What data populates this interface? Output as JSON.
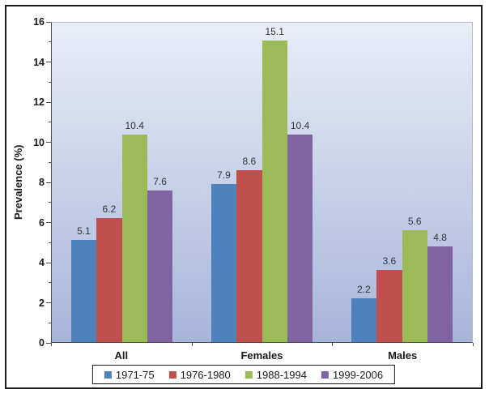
{
  "chart_data": {
    "type": "bar",
    "title": "",
    "categories": [
      "All",
      "Females",
      "Males"
    ],
    "series": [
      {
        "name": "1971-75",
        "color": "#4F81BD",
        "values": [
          5.1,
          7.9,
          2.2
        ]
      },
      {
        "name": "1976-1980",
        "color": "#C0504D",
        "values": [
          6.2,
          8.6,
          3.6
        ]
      },
      {
        "name": "1988-1994",
        "color": "#9BBB59",
        "values": [
          10.4,
          15.1,
          5.6
        ]
      },
      {
        "name": "1999-2006",
        "color": "#8064A2",
        "values": [
          7.6,
          10.4,
          4.8
        ]
      }
    ],
    "xlabel": "",
    "ylabel": "Prevalence (%)",
    "ylim": [
      0,
      16
    ],
    "ytick_step": 2,
    "yminor_step": 1,
    "ytick_labels": [
      "0",
      "2",
      "4",
      "6",
      "8",
      "10",
      "12",
      "14",
      "16"
    ],
    "grid": false,
    "legend_position": "bottom",
    "bar_value_labels": true,
    "value_label_decimals": 1
  },
  "style": {
    "plot_bg_top": "#e9edf7",
    "plot_bg_bottom": "#a6b5da",
    "axis_color": "#4d4d4d",
    "plot_border_color": "#b3bac6",
    "frame_border_color": "#1a1a1a",
    "value_label_color": "#333333",
    "text_color": "#1a1a1a"
  }
}
